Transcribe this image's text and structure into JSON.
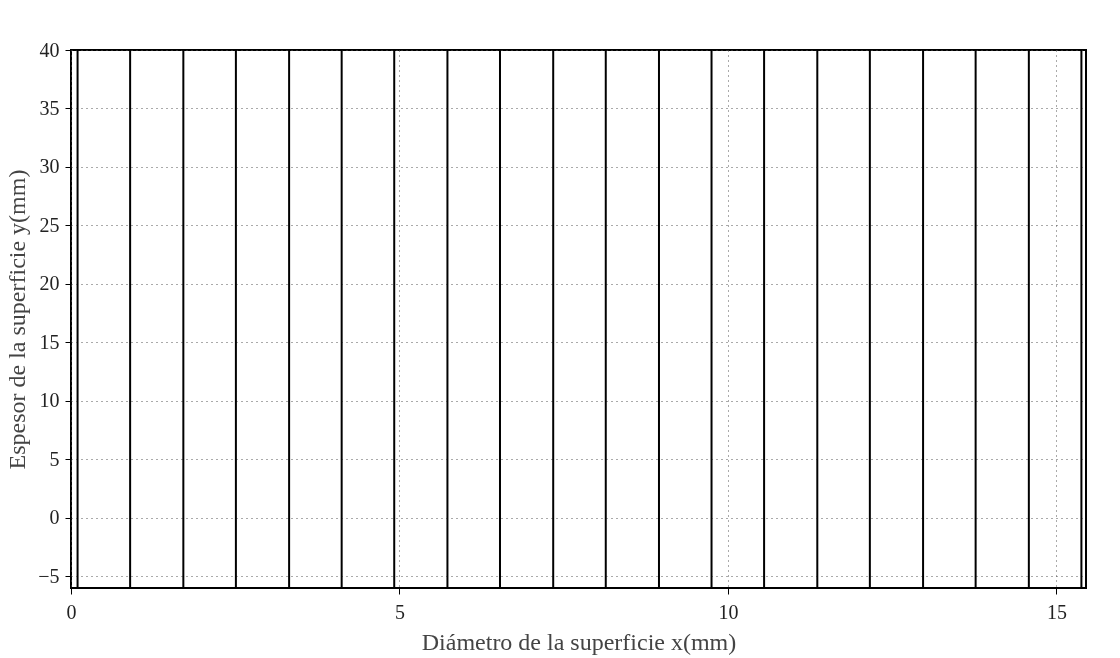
{
  "chart_data": {
    "type": "line",
    "xlabel": "Diámetro de la superficie x(mm)",
    "ylabel": "Espesor de la superficie y(mm)",
    "series": [
      {
        "color": "#000000",
        "x": [
          0.1,
          0.1
        ],
        "values": [
          -6,
          40
        ]
      },
      {
        "color": "#000000",
        "x": [
          0.9,
          0.9
        ],
        "values": [
          -6,
          40
        ]
      },
      {
        "color": "#000000",
        "x": [
          1.71,
          1.71
        ],
        "values": [
          -6,
          40
        ]
      },
      {
        "color": "#000000",
        "x": [
          2.51,
          2.51
        ],
        "values": [
          -6,
          40
        ]
      },
      {
        "color": "#000000",
        "x": [
          3.32,
          3.32
        ],
        "values": [
          -6,
          40
        ]
      },
      {
        "color": "#000000",
        "x": [
          4.12,
          4.12
        ],
        "values": [
          -6,
          40
        ]
      },
      {
        "color": "#000000",
        "x": [
          4.92,
          4.92
        ],
        "values": [
          -6,
          40
        ]
      },
      {
        "color": "#000000",
        "x": [
          5.73,
          5.73
        ],
        "values": [
          -6,
          40
        ]
      },
      {
        "color": "#000000",
        "x": [
          6.53,
          6.53
        ],
        "values": [
          -6,
          40
        ]
      },
      {
        "color": "#000000",
        "x": [
          7.34,
          7.34
        ],
        "values": [
          -6,
          40
        ]
      },
      {
        "color": "#000000",
        "x": [
          8.14,
          8.14
        ],
        "values": [
          -6,
          40
        ]
      },
      {
        "color": "#000000",
        "x": [
          8.95,
          8.95
        ],
        "values": [
          -6,
          40
        ]
      },
      {
        "color": "#000000",
        "x": [
          9.75,
          9.75
        ],
        "values": [
          -6,
          40
        ]
      },
      {
        "color": "#000000",
        "x": [
          10.55,
          10.55
        ],
        "values": [
          -6,
          40
        ]
      },
      {
        "color": "#000000",
        "x": [
          11.36,
          11.36
        ],
        "values": [
          -6,
          40
        ]
      },
      {
        "color": "#000000",
        "x": [
          12.16,
          12.16
        ],
        "values": [
          -6,
          40
        ]
      },
      {
        "color": "#000000",
        "x": [
          12.97,
          12.97
        ],
        "values": [
          -6,
          40
        ]
      },
      {
        "color": "#000000",
        "x": [
          13.77,
          13.77
        ],
        "values": [
          -6,
          40
        ]
      },
      {
        "color": "#000000",
        "x": [
          14.58,
          14.58
        ],
        "values": [
          -6,
          40
        ]
      },
      {
        "color": "#000000",
        "x": [
          15.38,
          15.38
        ],
        "values": [
          -6,
          40
        ]
      }
    ],
    "xlim": [
      0,
      15.45
    ],
    "xticks": [
      0,
      5,
      10,
      15
    ],
    "ylim": [
      -6,
      40
    ],
    "yticks": [
      -5,
      0,
      5,
      10,
      15,
      20,
      25,
      30,
      35,
      40
    ],
    "grid": true,
    "line_style": "solid",
    "marker": "none",
    "legend": false
  }
}
